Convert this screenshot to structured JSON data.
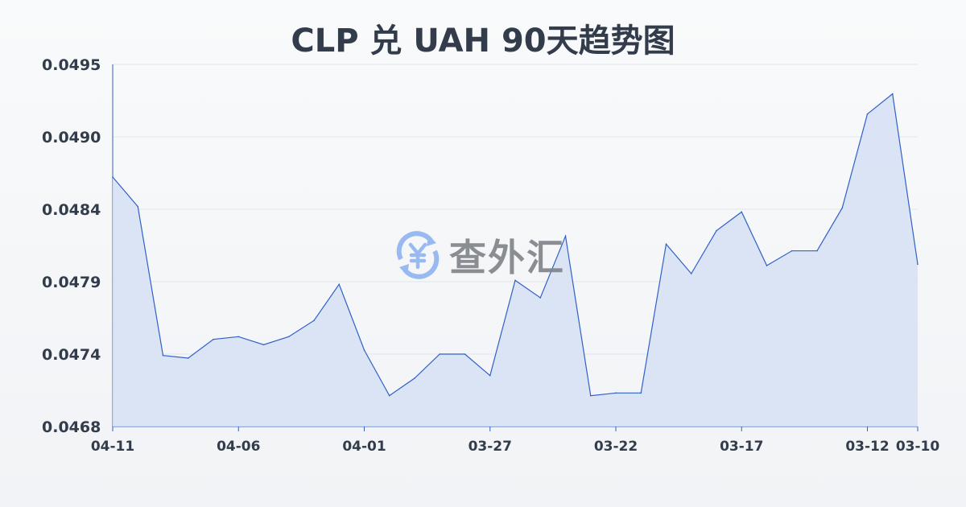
{
  "chart_data": {
    "type": "area",
    "title": "CLP 兑 UAH 90天趋势图",
    "xlabel": "",
    "ylabel": "",
    "ylim": [
      0.0468,
      0.0495
    ],
    "yticks": [
      "0.0495",
      "0.0490",
      "0.0484",
      "0.0479",
      "0.0474",
      "0.0468"
    ],
    "xticks": [
      "04-11",
      "04-06",
      "04-01",
      "03-27",
      "03-22",
      "03-17",
      "03-12",
      "03-10"
    ],
    "grid": true,
    "x": [
      "04-11",
      "04-10",
      "04-09",
      "04-08",
      "04-07",
      "04-06",
      "04-05",
      "04-04",
      "04-03",
      "04-02",
      "04-01",
      "03-31",
      "03-30",
      "03-29",
      "03-28",
      "03-27",
      "03-26",
      "03-25",
      "03-24",
      "03-23",
      "03-22",
      "03-21",
      "03-20",
      "03-19",
      "03-18",
      "03-17",
      "03-16",
      "03-15",
      "03-14",
      "03-13",
      "03-12",
      "03-11",
      "03-10"
    ],
    "values": [
      0.04866,
      0.04844,
      0.04733,
      0.04731,
      0.04745,
      0.04747,
      0.04741,
      0.04747,
      0.04759,
      0.04786,
      0.04737,
      0.04703,
      0.04716,
      0.04734,
      0.04734,
      0.04718,
      0.04789,
      0.04776,
      0.04822,
      0.04703,
      0.04705,
      0.04705,
      0.04816,
      0.04794,
      0.04826,
      0.0484,
      0.048,
      0.04811,
      0.04811,
      0.04843,
      0.04913,
      0.04928,
      0.04801
    ],
    "colors": {
      "line": "#3060c8",
      "fill": "#d6e0f5",
      "grid": "#e2e5ea",
      "text": "#333c4b"
    }
  },
  "watermark": {
    "text": "查外汇",
    "icon": "yen-exchange-icon"
  }
}
